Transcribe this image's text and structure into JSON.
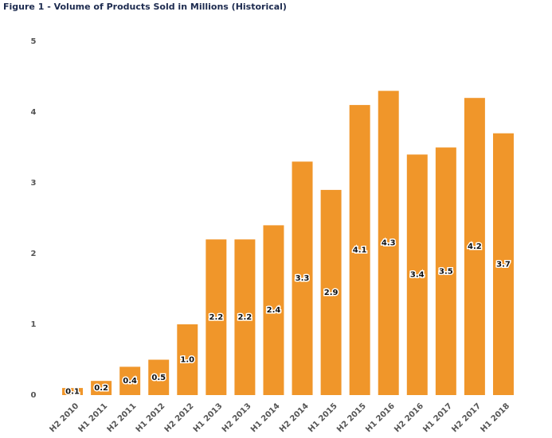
{
  "chart_data": {
    "type": "bar",
    "title": "Figure 1 - Volume of Products Sold in Millions (Historical)",
    "categories": [
      "H2 2010",
      "H1 2011",
      "H2 2011",
      "H1 2012",
      "H2 2012",
      "H1 2013",
      "H2 2013",
      "H1 2014",
      "H2 2014",
      "H1 2015",
      "H2 2015",
      "H1 2016",
      "H2 2016",
      "H1 2017",
      "H2 2017",
      "H1 2018"
    ],
    "values": [
      0.1,
      0.2,
      0.4,
      0.5,
      1.0,
      2.2,
      2.2,
      2.4,
      3.3,
      2.9,
      4.1,
      4.3,
      3.4,
      3.5,
      4.2,
      3.7
    ],
    "value_labels": [
      "0.1",
      "0.2",
      "0.4",
      "0.5",
      "1.0",
      "2.2",
      "2.2",
      "2.4",
      "3.3",
      "2.9",
      "4.1",
      "4.3",
      "3.4",
      "3.5",
      "4.2",
      "3.7"
    ],
    "color": "#f0962a",
    "ylim": [
      0,
      5
    ],
    "yticks": [
      0,
      1,
      2,
      3,
      4,
      5
    ],
    "grid": false
  }
}
